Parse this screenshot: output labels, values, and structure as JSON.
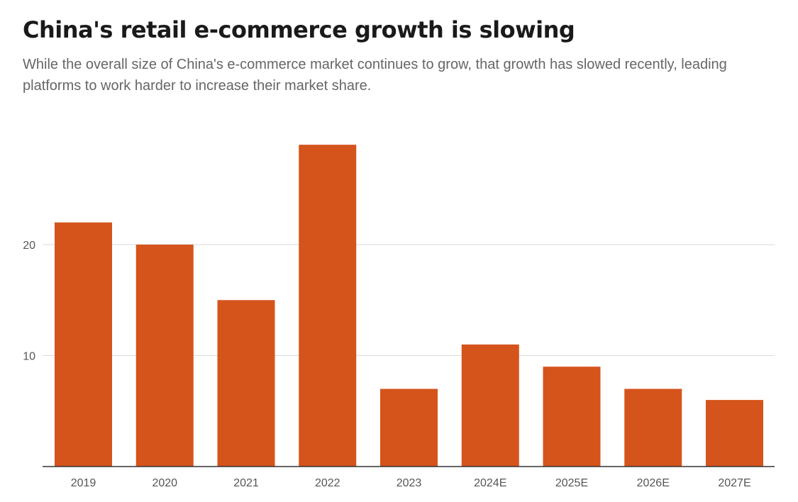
{
  "chart_data": {
    "type": "bar",
    "title": "China's retail e-commerce growth is slowing",
    "subtitle": "While the overall size of China's e-commerce market continues to grow, that growth has slowed recently, leading platforms to work harder to increase their market share.",
    "categories": [
      "2019",
      "2020",
      "2021",
      "2022",
      "2023",
      "2024E",
      "2025E",
      "2026E",
      "2027E"
    ],
    "values": [
      22,
      20,
      15,
      29,
      7,
      11,
      9,
      7,
      6
    ],
    "xlabel": "",
    "ylabel": "",
    "ylim": [
      0,
      30
    ],
    "yticks": [
      10,
      20
    ],
    "grid": true,
    "bar_color": "#d4541c",
    "grid_color": "#d9d9d9",
    "axis_color": "#333333"
  }
}
